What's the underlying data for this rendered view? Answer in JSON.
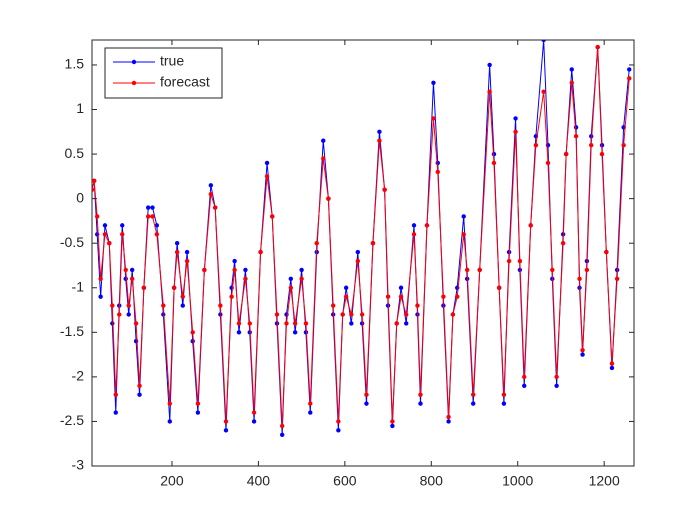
{
  "chart_data": {
    "type": "line",
    "x": [
      15,
      20,
      27,
      35,
      45,
      55,
      62,
      70,
      78,
      85,
      93,
      100,
      108,
      117,
      125,
      135,
      145,
      155,
      165,
      180,
      195,
      205,
      212,
      225,
      235,
      248,
      260,
      275,
      290,
      300,
      312,
      325,
      338,
      345,
      355,
      370,
      380,
      390,
      405,
      420,
      432,
      443,
      455,
      465,
      475,
      485,
      500,
      510,
      520,
      535,
      550,
      562,
      573,
      585,
      595,
      603,
      615,
      630,
      640,
      650,
      665,
      680,
      692,
      700,
      710,
      720,
      730,
      742,
      760,
      768,
      775,
      790,
      805,
      815,
      828,
      840,
      850,
      860,
      875,
      883,
      897,
      912,
      935,
      945,
      957,
      968,
      980,
      995,
      1005,
      1015,
      1030,
      1042,
      1060,
      1070,
      1080,
      1090,
      1105,
      1112,
      1125,
      1135,
      1143,
      1150,
      1160,
      1170,
      1185,
      1195,
      1205,
      1218,
      1230,
      1245,
      1258
    ],
    "series": [
      {
        "name": "true",
        "color": "#0000ff",
        "values": [
          0.1,
          0.2,
          -0.4,
          -1.1,
          -0.3,
          -0.5,
          -1.4,
          -2.4,
          -1.2,
          -0.3,
          -0.9,
          -1.3,
          -0.8,
          -1.6,
          -2.2,
          -1.0,
          -0.1,
          -0.1,
          -0.3,
          -1.3,
          -2.5,
          -1.0,
          -0.5,
          -1.2,
          -0.6,
          -1.6,
          -2.4,
          -0.8,
          0.15,
          -0.1,
          -1.3,
          -2.6,
          -1.0,
          -0.7,
          -1.5,
          -0.8,
          -1.5,
          -2.5,
          -0.6,
          0.4,
          -0.2,
          -1.4,
          -2.65,
          -1.3,
          -0.9,
          -1.5,
          -0.8,
          -1.5,
          -2.4,
          -0.6,
          0.65,
          0.0,
          -1.3,
          -2.6,
          -1.3,
          -1.0,
          -1.4,
          -0.6,
          -1.4,
          -2.3,
          -0.5,
          0.75,
          0.1,
          -1.2,
          -2.55,
          -1.4,
          -1.0,
          -1.4,
          -0.3,
          -1.3,
          -2.3,
          -0.3,
          1.3,
          0.4,
          -1.2,
          -2.5,
          -1.3,
          -1.0,
          -0.2,
          -0.9,
          -2.3,
          -0.8,
          1.5,
          0.5,
          -1.0,
          -2.3,
          -0.6,
          0.9,
          -0.8,
          -2.1,
          -0.3,
          0.7,
          1.78,
          0.6,
          -0.9,
          -2.1,
          -0.4,
          0.5,
          1.45,
          0.8,
          -1.0,
          -1.75,
          -0.7,
          0.7,
          1.7,
          0.6,
          -0.6,
          -1.9,
          -0.8,
          0.8,
          1.45
        ]
      },
      {
        "name": "forecast",
        "color": "#ff0000",
        "values": [
          0.1,
          0.2,
          -0.2,
          -0.9,
          -0.4,
          -0.5,
          -1.2,
          -2.2,
          -1.3,
          -0.4,
          -0.8,
          -1.2,
          -0.9,
          -1.4,
          -2.1,
          -1.0,
          -0.2,
          -0.2,
          -0.4,
          -1.2,
          -2.3,
          -1.0,
          -0.6,
          -1.1,
          -0.7,
          -1.5,
          -2.3,
          -0.8,
          0.05,
          -0.1,
          -1.2,
          -2.5,
          -1.1,
          -0.8,
          -1.4,
          -0.9,
          -1.4,
          -2.4,
          -0.6,
          0.25,
          -0.2,
          -1.3,
          -2.55,
          -1.4,
          -1.0,
          -1.4,
          -0.9,
          -1.4,
          -2.3,
          -0.5,
          0.45,
          0.0,
          -1.2,
          -2.5,
          -1.3,
          -1.1,
          -1.3,
          -0.7,
          -1.3,
          -2.2,
          -0.5,
          0.65,
          0.1,
          -1.1,
          -2.5,
          -1.4,
          -1.1,
          -1.3,
          -0.4,
          -1.2,
          -2.2,
          -0.3,
          0.9,
          0.3,
          -1.1,
          -2.45,
          -1.3,
          -1.1,
          -0.4,
          -0.8,
          -2.2,
          -0.8,
          1.2,
          0.4,
          -1.0,
          -2.2,
          -0.7,
          0.75,
          -0.7,
          -2.0,
          -0.3,
          0.6,
          1.2,
          0.4,
          -0.8,
          -2.0,
          -0.5,
          0.5,
          1.3,
          0.7,
          -0.9,
          -1.7,
          -0.8,
          0.6,
          1.7,
          0.5,
          -0.6,
          -1.85,
          -0.9,
          0.6,
          1.35
        ]
      }
    ],
    "xlim": [
      15,
      1269
    ],
    "xticks": [
      200,
      400,
      600,
      800,
      1000,
      1200
    ],
    "ylim": [
      -3,
      1.78
    ],
    "yticks": [
      -3,
      -2.5,
      -2,
      -1.5,
      -1,
      -0.5,
      0,
      0.5,
      1,
      1.5
    ],
    "legend": "upper-left"
  }
}
